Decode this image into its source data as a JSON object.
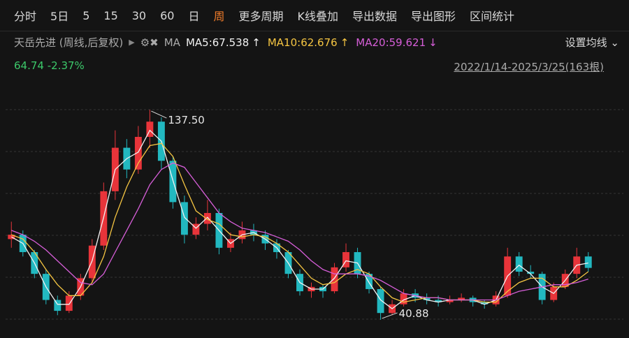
{
  "toolbar": {
    "items": [
      "分时",
      "5日",
      "5",
      "15",
      "30",
      "60",
      "日",
      "周",
      "更多周期",
      "K线叠加",
      "导出数据",
      "导出图形",
      "区间统计"
    ],
    "active": 7
  },
  "chart_data": {
    "type": "candlestick",
    "title": "天岳先进 (周线,后复权)",
    "ma_label": "MA",
    "last_price": 64.74,
    "change": "-2.37%",
    "range_text": "2022/1/14-2025/3/25(163根)",
    "settings_label": "设置均线",
    "up_color": "#e8343a",
    "down_color": "#22b8c0",
    "ylim": [
      37,
      146.2
    ],
    "open": [
      78,
      80,
      72,
      62,
      50,
      45,
      52,
      60,
      75,
      100,
      120,
      110,
      125,
      132,
      114,
      95,
      80,
      85,
      90,
      74,
      78,
      82,
      80,
      76,
      72,
      62,
      54,
      56,
      54,
      65,
      72,
      62,
      55,
      44,
      48,
      53,
      51,
      50,
      49,
      50,
      51,
      49,
      48,
      52,
      70,
      63,
      62,
      50,
      56,
      62,
      70
    ],
    "high": [
      86,
      82,
      73,
      64,
      52,
      54,
      62,
      78,
      104,
      128,
      124,
      130,
      137.5,
      134,
      116,
      98,
      88,
      96,
      92,
      81,
      86,
      85,
      82,
      78,
      73,
      64,
      58,
      57,
      67,
      76,
      74,
      63,
      56,
      50,
      55,
      55,
      53,
      52,
      52,
      53,
      52,
      50,
      54,
      74,
      72,
      66,
      63,
      58,
      64,
      74,
      72
    ],
    "low": [
      74,
      70,
      60,
      48,
      43,
      44,
      50,
      58,
      73,
      96,
      106,
      108,
      120,
      110,
      92,
      76,
      78,
      82,
      71,
      72,
      76,
      77,
      73,
      69,
      60,
      52,
      51,
      51,
      53,
      63,
      60,
      53,
      40.88,
      43,
      47,
      49,
      48,
      47,
      48,
      49,
      47,
      46,
      47,
      51,
      61,
      60,
      48,
      49,
      55,
      60,
      63
    ],
    "close": [
      80,
      72,
      62,
      50,
      45,
      52,
      60,
      75,
      100,
      120,
      110,
      125,
      132,
      114,
      95,
      80,
      85,
      90,
      74,
      78,
      82,
      80,
      76,
      72,
      62,
      54,
      56,
      54,
      65,
      72,
      62,
      55,
      44,
      48,
      53,
      51,
      50,
      49,
      50,
      51,
      49,
      48,
      52,
      70,
      63,
      62,
      50,
      56,
      62,
      70,
      64.74
    ],
    "series": [
      {
        "name": "MA5",
        "color": "#f2f2f2",
        "latest": 67.538,
        "arrow": "↑",
        "values": [
          79,
          76,
          67,
          56,
          48,
          48,
          56,
          68,
          88,
          110,
          115,
          118,
          128,
          123,
          105,
          88,
          83,
          88,
          82,
          76,
          80,
          81,
          78,
          74,
          67,
          58,
          55,
          55,
          60,
          68,
          67,
          58,
          50,
          46,
          50,
          52,
          50,
          49,
          50,
          50,
          50,
          48,
          50,
          61,
          66,
          62,
          56,
          53,
          59,
          66,
          67
        ]
      },
      {
        "name": "MA10",
        "color": "#f5c542",
        "latest": 62.676,
        "arrow": "↑",
        "values": [
          80,
          78,
          72,
          64,
          57,
          52,
          52,
          58,
          70,
          88,
          102,
          113,
          121,
          122,
          116,
          103,
          91,
          87,
          85,
          80,
          79,
          80,
          79,
          76,
          72,
          66,
          60,
          57,
          58,
          62,
          64,
          62,
          56,
          51,
          49,
          50,
          51,
          51,
          50,
          50,
          50,
          49,
          49,
          54,
          58,
          60,
          60,
          56,
          56,
          59,
          63
        ]
      },
      {
        "name": "MA20",
        "color": "#d65ed8",
        "latest": 59.621,
        "arrow": "↓",
        "values": [
          82,
          80,
          77,
          73,
          68,
          63,
          58,
          57,
          62,
          72,
          82,
          92,
          103,
          110,
          113,
          111,
          104,
          97,
          90,
          86,
          83,
          82,
          81,
          79,
          77,
          73,
          68,
          64,
          62,
          62,
          62,
          61,
          59,
          56,
          53,
          52,
          51,
          51,
          50,
          50,
          50,
          50,
          50,
          52,
          54,
          55,
          56,
          57,
          57,
          58,
          59.6
        ]
      }
    ],
    "annotations": [
      {
        "index": 12,
        "value": {
          "value": 137.5,
          "label": "137.50"
        }
      },
      {
        "index": 32,
        "value": 40.88
      }
    ]
  }
}
